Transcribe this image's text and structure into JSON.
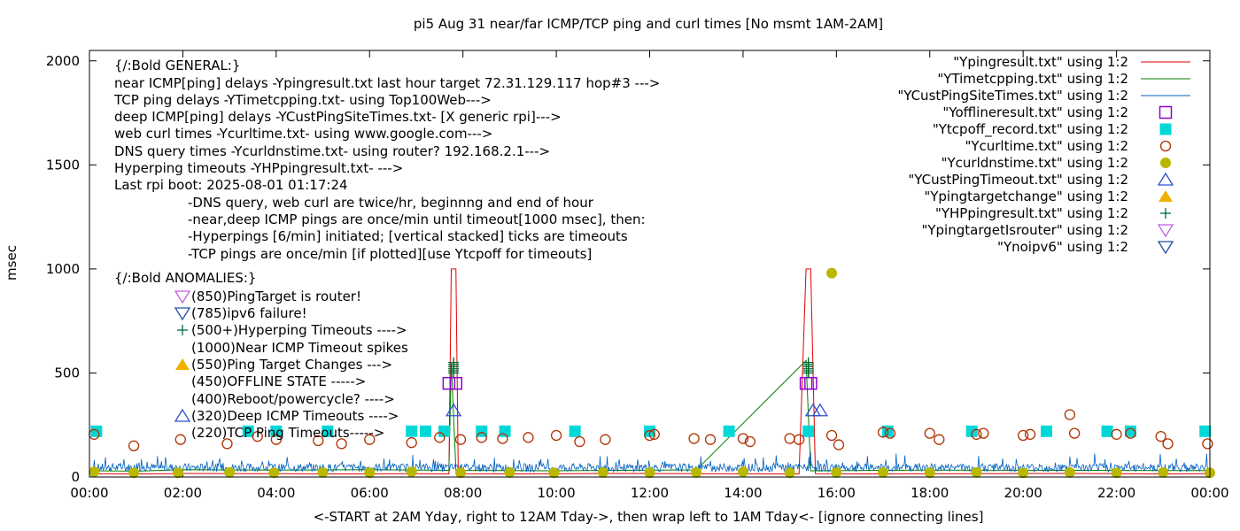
{
  "chart_data": {
    "type": "line",
    "title": "pi5 Aug 31  near/far ICMP/TCP ping and curl times [No msmt 1AM-2AM]",
    "ylabel": "msec",
    "xlabel": "<-START at 2AM Yday, right to 12AM Tday->, then wrap left to 1AM Tday<- [ignore connecting lines]",
    "ylim": [
      0,
      2050
    ],
    "xlim_hours": [
      0,
      24
    ],
    "yticks": [
      0,
      500,
      1000,
      1500,
      2000
    ],
    "xtick_labels": [
      "00:00",
      "02:00",
      "04:00",
      "06:00",
      "08:00",
      "10:00",
      "12:00",
      "14:00",
      "16:00",
      "18:00",
      "20:00",
      "22:00",
      "00:00"
    ],
    "annotations": [
      "{/:Bold GENERAL:}",
      "near ICMP[ping] delays -Ypingresult.txt last hour target 72.31.129.117 hop#3 --->",
      "TCP ping delays -YTimetcpping.txt- using Top100Web--->",
      "deep ICMP[ping] delays -YCustPingSiteTimes.txt- [X generic rpi]--->",
      "web curl times -Ycurltime.txt- using www.google.com--->",
      "DNS query times -Ycurldnstime.txt- using router? 192.168.2.1--->",
      "Hyperping timeouts -YHPpingresult.txt- --->",
      "Last rpi boot: 2025-08-01 01:17:24",
      "-DNS query, web curl are twice/hr, beginnng and end of hour",
      "-near,deep ICMP pings are once/min until timeout[1000 msec], then:",
      "  -Hyperpings [6/min] initiated; [vertical stacked] ticks are timeouts",
      "-TCP pings are once/min [if plotted][use Ytcpoff for timeouts]",
      "{/:Bold ANOMALIES:}",
      "(850)PingTarget is router!",
      "(785)ipv6 failure!",
      "(500+)Hyperping Timeouts ---->",
      "(1000)Near ICMP Timeout spikes",
      "(550)Ping Target Changes --->",
      "(450)OFFLINE STATE ----->",
      "(400)Reboot/powercycle? ---->",
      "(320)Deep ICMP Timeouts ---->",
      "(220)TCP Ping Timeouts----->"
    ],
    "series": [
      {
        "name": "\"Ypingresult.txt\" using 1:2",
        "color": "#e00000",
        "style": "line",
        "points": [
          [
            0,
            16
          ],
          [
            1.1,
            15
          ],
          [
            2.2,
            17
          ],
          [
            4,
            16
          ],
          [
            5.5,
            15
          ],
          [
            7,
            16
          ],
          [
            7.7,
            15
          ],
          [
            7.75,
            1000
          ],
          [
            7.85,
            1000
          ],
          [
            7.9,
            16
          ],
          [
            9,
            15
          ],
          [
            11,
            17
          ],
          [
            13,
            16
          ],
          [
            15.2,
            15
          ],
          [
            15.35,
            1000
          ],
          [
            15.45,
            1000
          ],
          [
            15.55,
            16
          ],
          [
            17,
            15
          ],
          [
            19,
            16
          ],
          [
            21,
            17
          ],
          [
            23,
            15
          ],
          [
            24,
            16
          ]
        ]
      },
      {
        "name": "\"YTimetcpping.txt\" using 1:2",
        "color": "#008000",
        "style": "line",
        "points": [
          [
            0,
            30
          ],
          [
            1,
            28
          ],
          [
            2,
            35
          ],
          [
            4,
            33
          ],
          [
            6,
            35
          ],
          [
            7.7,
            32
          ],
          [
            7.75,
            550
          ],
          [
            7.85,
            32
          ],
          [
            10,
            30
          ],
          [
            13,
            34
          ],
          [
            15.35,
            560
          ],
          [
            15.45,
            30
          ],
          [
            18,
            33
          ],
          [
            21,
            32
          ],
          [
            24,
            31
          ]
        ]
      },
      {
        "name": "\"YCustPingSiteTimes.txt\" using 1:2",
        "color": "#0060c0",
        "style": "noise",
        "points": [
          [
            0,
            40
          ],
          [
            24,
            40
          ]
        ]
      },
      {
        "name": "\"Yofflineresult.txt\" using 1:2",
        "color": "#9400d3",
        "style": "open-square",
        "points": [
          [
            7.7,
            450
          ],
          [
            7.85,
            450
          ],
          [
            15.35,
            450
          ],
          [
            15.45,
            450
          ]
        ]
      },
      {
        "name": "\"Ytcpoff_record.txt\" using 1:2",
        "color": "#00d8d8",
        "style": "filled-square",
        "points": [
          [
            0.15,
            220
          ],
          [
            3.4,
            220
          ],
          [
            4.0,
            220
          ],
          [
            5.1,
            220
          ],
          [
            6.9,
            220
          ],
          [
            7.2,
            220
          ],
          [
            7.6,
            220
          ],
          [
            8.4,
            220
          ],
          [
            8.9,
            220
          ],
          [
            10.4,
            220
          ],
          [
            12.0,
            220
          ],
          [
            13.7,
            220
          ],
          [
            15.4,
            220
          ],
          [
            17.1,
            220
          ],
          [
            18.9,
            220
          ],
          [
            20.5,
            220
          ],
          [
            21.8,
            220
          ],
          [
            22.3,
            220
          ],
          [
            23.9,
            220
          ]
        ]
      },
      {
        "name": "\"Ycurltime.txt\" using 1:2",
        "color": "#b03000",
        "style": "open-circle",
        "points": [
          [
            0.1,
            205
          ],
          [
            0.95,
            150
          ],
          [
            1.95,
            180
          ],
          [
            2.95,
            160
          ],
          [
            3.6,
            195
          ],
          [
            4.0,
            180
          ],
          [
            4.9,
            175
          ],
          [
            5.4,
            160
          ],
          [
            6.0,
            180
          ],
          [
            6.9,
            165
          ],
          [
            7.5,
            190
          ],
          [
            7.95,
            180
          ],
          [
            8.4,
            190
          ],
          [
            8.85,
            185
          ],
          [
            9.4,
            190
          ],
          [
            10.0,
            200
          ],
          [
            10.5,
            170
          ],
          [
            11.05,
            180
          ],
          [
            12.0,
            200
          ],
          [
            12.1,
            205
          ],
          [
            12.95,
            185
          ],
          [
            13.3,
            180
          ],
          [
            14.0,
            185
          ],
          [
            14.15,
            170
          ],
          [
            15.0,
            185
          ],
          [
            15.2,
            180
          ],
          [
            15.9,
            200
          ],
          [
            16.05,
            155
          ],
          [
            17.0,
            215
          ],
          [
            17.15,
            210
          ],
          [
            18.0,
            210
          ],
          [
            18.2,
            180
          ],
          [
            19.0,
            205
          ],
          [
            19.15,
            210
          ],
          [
            20.0,
            200
          ],
          [
            20.15,
            205
          ],
          [
            21.0,
            300
          ],
          [
            21.1,
            210
          ],
          [
            22.0,
            205
          ],
          [
            22.3,
            210
          ],
          [
            22.95,
            195
          ],
          [
            23.1,
            160
          ],
          [
            23.95,
            160
          ]
        ]
      },
      {
        "name": "\"Ycurldnstime.txt\" using 1:2",
        "color": "#b8b800",
        "style": "filled-circle",
        "points": [
          [
            0.1,
            25
          ],
          [
            0.95,
            20
          ],
          [
            1.9,
            20
          ],
          [
            3.0,
            22
          ],
          [
            3.95,
            20
          ],
          [
            5.0,
            22
          ],
          [
            6.0,
            20
          ],
          [
            6.9,
            25
          ],
          [
            7.95,
            20
          ],
          [
            9.0,
            22
          ],
          [
            9.95,
            20
          ],
          [
            11.0,
            22
          ],
          [
            12.0,
            20
          ],
          [
            13.0,
            22
          ],
          [
            14.0,
            25
          ],
          [
            15.0,
            20
          ],
          [
            15.9,
            980
          ],
          [
            16.0,
            22
          ],
          [
            17.0,
            22
          ],
          [
            18.0,
            20
          ],
          [
            19.0,
            22
          ],
          [
            20.0,
            20
          ],
          [
            21.0,
            22
          ],
          [
            22.0,
            20
          ],
          [
            23.0,
            22
          ],
          [
            24.0,
            20
          ]
        ]
      },
      {
        "name": "\"YCustPingTimeout.txt\" using 1:2",
        "color": "#3050d0",
        "style": "open-triangle",
        "points": [
          [
            7.8,
            320
          ],
          [
            15.5,
            320
          ],
          [
            15.65,
            320
          ]
        ]
      },
      {
        "name": "\"Ypingtargetchange\" using 1:2",
        "color": "#f0b000",
        "style": "filled-triangle",
        "points": []
      },
      {
        "name": "\"YHPpingresult.txt\" using 1:2",
        "color": "#006a3a",
        "style": "plus",
        "points": [
          [
            7.8,
            500
          ],
          [
            7.8,
            510
          ],
          [
            7.8,
            520
          ],
          [
            7.8,
            530
          ],
          [
            7.8,
            540
          ],
          [
            7.8,
            550
          ],
          [
            15.4,
            500
          ],
          [
            15.4,
            510
          ],
          [
            15.4,
            520
          ],
          [
            15.4,
            530
          ],
          [
            15.4,
            540
          ],
          [
            15.4,
            550
          ]
        ]
      },
      {
        "name": "\"YpingtargetIsrouter\" using 1:2",
        "color": "#c060e0",
        "style": "open-triangle-down",
        "points": []
      },
      {
        "name": "\"Ynoipv6\" using 1:2",
        "color": "#2050a0",
        "style": "open-triangle-down",
        "points": []
      }
    ]
  }
}
